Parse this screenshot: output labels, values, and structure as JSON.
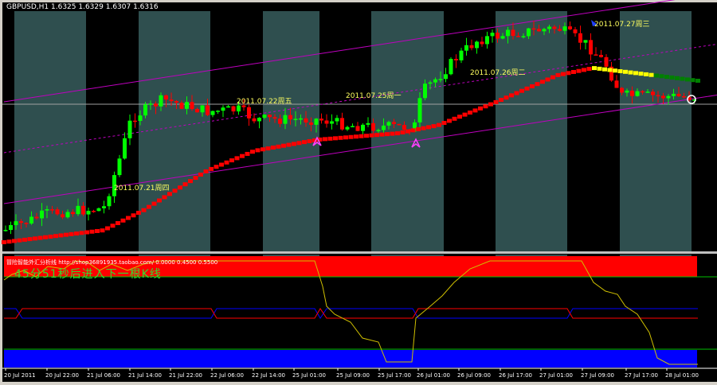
{
  "window": {
    "title": "GBPUSD,H1  1.6325 1.6329 1.6307 1.6316",
    "symbol": "GBPUSD",
    "timeframe": "H1",
    "ohlc": [
      "1.6325",
      "1.6329",
      "1.6307",
      "1.6316"
    ]
  },
  "annotations": [
    {
      "text": "2011.07.21周四"
    },
    {
      "text": "2011.07.22周五"
    },
    {
      "text": "2011.07.25周一"
    },
    {
      "text": "2011.07.26周二"
    },
    {
      "text": "2011.07.27周三"
    }
  ],
  "indicator": {
    "title": "冒险智能外汇分析线  http://shop36891935.taobao.com/ 0.0000 0.4500 0.5500",
    "levels": [
      "0.0000",
      "0.4500",
      "0.5500"
    ],
    "countdown": "45分51秒后进入下一根K线"
  },
  "time_axis": [
    "20 Jul 2011",
    "20 Jul 22:00",
    "21 Jul 06:00",
    "21 Jul 14:00",
    "21 Jul 22:00",
    "22 Jul 06:00",
    "22 Jul 14:00",
    "25 Jul 01:00",
    "25 Jul 09:00",
    "25 Jul 17:00",
    "26 Jul 01:00",
    "26 Jul 09:00",
    "26 Jul 17:00",
    "27 Jul 01:00",
    "27 Jul 09:00",
    "27 Jul 17:00",
    "28 Jul 01:00"
  ],
  "colors": {
    "background": "#000000",
    "day_shade": "#2f4f4f",
    "bull_candle": "#00ff00",
    "bear_candle": "#ff0000",
    "channel": "#c000c0",
    "ma_up": "#ff0000",
    "ma_flat": "#ffff00",
    "ma_down": "#008000",
    "overbought_band": "#ff0000",
    "oversold_band": "#0000ff",
    "oscillator": "#d0c000",
    "level_line": "#00c000"
  }
}
